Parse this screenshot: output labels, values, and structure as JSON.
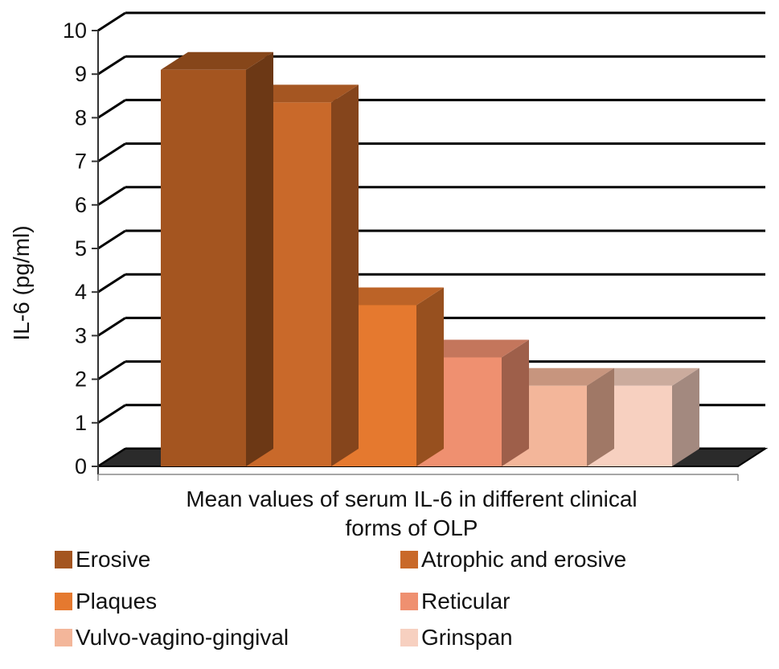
{
  "chart_data": {
    "type": "bar",
    "title": "",
    "xlabel": "Mean values of serum IL-6 in different clinical forms of OLP",
    "xlabel_lines": [
      "Mean values of serum IL-6 in different clinical",
      "forms of OLP"
    ],
    "ylabel": "IL-6 (pg/ml)",
    "ylim": [
      0,
      10
    ],
    "yticks": [
      0,
      1,
      2,
      3,
      4,
      5,
      6,
      7,
      8,
      9,
      10
    ],
    "grid": true,
    "legend_position": "bottom",
    "series": [
      {
        "name": "Erosive",
        "value": 9.1,
        "color": "#a45520"
      },
      {
        "name": "Atrophic and erosive",
        "value": 8.35,
        "color": "#c9692a"
      },
      {
        "name": "Plaques",
        "value": 3.7,
        "color": "#e5792f"
      },
      {
        "name": "Reticular",
        "value": 2.5,
        "color": "#ef9070"
      },
      {
        "name": "Vulvo-vagino-gingival",
        "value": 1.85,
        "color": "#f3b69a"
      },
      {
        "name": "Grinspan",
        "value": 1.85,
        "color": "#f7d0c0"
      }
    ]
  }
}
